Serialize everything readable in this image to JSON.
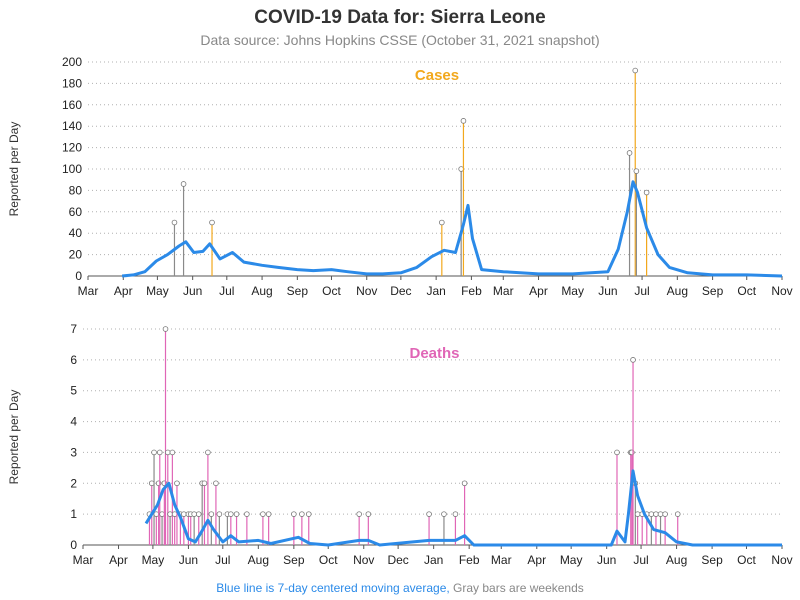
{
  "title": "COVID-19 Data for: Sierra Leone",
  "subtitle": "Data source: Johns Hopkins CSSE (October 31, 2021 snapshot)",
  "footnote": {
    "blue_text": "Blue line is 7-day centered moving average,",
    "gray_text": " Gray bars are weekends"
  },
  "colors": {
    "cases": "#f2a81d",
    "deaths": "#e066b6",
    "avg": "#2b8ae8",
    "weekend": "#8a8a8a",
    "marker_edge": "#777777"
  },
  "chart_data": [
    {
      "type": "bar",
      "name": "cases",
      "panel_label": "Cases",
      "ylabel": "Reported per Day",
      "ylim": [
        0,
        200
      ],
      "yticks": [
        0,
        20,
        40,
        60,
        80,
        100,
        120,
        140,
        160,
        180,
        200
      ],
      "grid": true,
      "x_tick_labels": [
        "Mar",
        "Apr",
        "May",
        "Jun",
        "Jul",
        "Aug",
        "Sep",
        "Oct",
        "Nov",
        "Dec",
        "Jan",
        "Feb",
        "Mar",
        "Apr",
        "May",
        "Jun",
        "Jul",
        "Aug",
        "Sep",
        "Oct",
        "Nov"
      ],
      "x_start": "2020-03-01",
      "x_end": "2021-11-01",
      "daily_peaks": [
        {
          "date": "2020-05-16",
          "value": 50
        },
        {
          "date": "2020-05-24",
          "value": 86
        },
        {
          "date": "2020-06-18",
          "value": 50
        },
        {
          "date": "2021-01-06",
          "value": 50
        },
        {
          "date": "2021-01-23",
          "value": 100
        },
        {
          "date": "2021-01-25",
          "value": 145
        },
        {
          "date": "2021-06-20",
          "value": 115
        },
        {
          "date": "2021-06-25",
          "value": 192
        },
        {
          "date": "2021-06-26",
          "value": 98
        },
        {
          "date": "2021-07-05",
          "value": 78
        }
      ],
      "moving_average": [
        {
          "date": "2020-03-31",
          "value": 0
        },
        {
          "date": "2020-04-10",
          "value": 1
        },
        {
          "date": "2020-04-20",
          "value": 4
        },
        {
          "date": "2020-04-30",
          "value": 14
        },
        {
          "date": "2020-05-10",
          "value": 20
        },
        {
          "date": "2020-05-20",
          "value": 28
        },
        {
          "date": "2020-05-26",
          "value": 32
        },
        {
          "date": "2020-06-02",
          "value": 22
        },
        {
          "date": "2020-06-10",
          "value": 23
        },
        {
          "date": "2020-06-16",
          "value": 30
        },
        {
          "date": "2020-06-25",
          "value": 16
        },
        {
          "date": "2020-07-06",
          "value": 22
        },
        {
          "date": "2020-07-16",
          "value": 13
        },
        {
          "date": "2020-08-01",
          "value": 10
        },
        {
          "date": "2020-08-15",
          "value": 8
        },
        {
          "date": "2020-09-01",
          "value": 6
        },
        {
          "date": "2020-09-15",
          "value": 5
        },
        {
          "date": "2020-10-01",
          "value": 6
        },
        {
          "date": "2020-10-15",
          "value": 4
        },
        {
          "date": "2020-11-01",
          "value": 2
        },
        {
          "date": "2020-11-15",
          "value": 2
        },
        {
          "date": "2020-12-01",
          "value": 3
        },
        {
          "date": "2020-12-15",
          "value": 8
        },
        {
          "date": "2020-12-28",
          "value": 18
        },
        {
          "date": "2021-01-08",
          "value": 24
        },
        {
          "date": "2021-01-18",
          "value": 22
        },
        {
          "date": "2021-01-25",
          "value": 48
        },
        {
          "date": "2021-01-29",
          "value": 66
        },
        {
          "date": "2021-02-02",
          "value": 35
        },
        {
          "date": "2021-02-10",
          "value": 6
        },
        {
          "date": "2021-03-01",
          "value": 4
        },
        {
          "date": "2021-04-01",
          "value": 2
        },
        {
          "date": "2021-05-01",
          "value": 2
        },
        {
          "date": "2021-06-01",
          "value": 4
        },
        {
          "date": "2021-06-10",
          "value": 25
        },
        {
          "date": "2021-06-18",
          "value": 60
        },
        {
          "date": "2021-06-23",
          "value": 88
        },
        {
          "date": "2021-06-27",
          "value": 78
        },
        {
          "date": "2021-07-05",
          "value": 45
        },
        {
          "date": "2021-07-15",
          "value": 20
        },
        {
          "date": "2021-07-25",
          "value": 8
        },
        {
          "date": "2021-08-10",
          "value": 3
        },
        {
          "date": "2021-09-01",
          "value": 1
        },
        {
          "date": "2021-10-01",
          "value": 1
        },
        {
          "date": "2021-11-01",
          "value": 0
        }
      ]
    },
    {
      "type": "bar",
      "name": "deaths",
      "panel_label": "Deaths",
      "ylabel": "Reported per Day",
      "ylim": [
        0,
        7
      ],
      "yticks": [
        0,
        1,
        2,
        3,
        4,
        5,
        6,
        7
      ],
      "grid": true,
      "x_tick_labels": [
        "Mar",
        "Apr",
        "May",
        "Jun",
        "Jul",
        "Aug",
        "Sep",
        "Oct",
        "Nov",
        "Dec",
        "Jan",
        "Feb",
        "Mar",
        "Apr",
        "May",
        "Jun",
        "Jul",
        "Aug",
        "Sep",
        "Oct",
        "Nov"
      ],
      "x_start": "2020-03-01",
      "x_end": "2021-11-01",
      "daily": [
        {
          "date": "2020-04-28",
          "value": 1
        },
        {
          "date": "2020-04-30",
          "value": 2
        },
        {
          "date": "2020-05-02",
          "value": 3
        },
        {
          "date": "2020-05-04",
          "value": 1
        },
        {
          "date": "2020-05-06",
          "value": 2
        },
        {
          "date": "2020-05-07",
          "value": 3
        },
        {
          "date": "2020-05-09",
          "value": 1
        },
        {
          "date": "2020-05-11",
          "value": 2
        },
        {
          "date": "2020-05-12",
          "value": 7
        },
        {
          "date": "2020-05-14",
          "value": 3
        },
        {
          "date": "2020-05-16",
          "value": 1
        },
        {
          "date": "2020-05-18",
          "value": 3
        },
        {
          "date": "2020-05-20",
          "value": 1
        },
        {
          "date": "2020-05-22",
          "value": 2
        },
        {
          "date": "2020-05-25",
          "value": 1
        },
        {
          "date": "2020-05-28",
          "value": 1
        },
        {
          "date": "2020-06-01",
          "value": 1
        },
        {
          "date": "2020-06-03",
          "value": 1
        },
        {
          "date": "2020-06-06",
          "value": 1
        },
        {
          "date": "2020-06-10",
          "value": 1
        },
        {
          "date": "2020-06-13",
          "value": 2
        },
        {
          "date": "2020-06-15",
          "value": 2
        },
        {
          "date": "2020-06-18",
          "value": 3
        },
        {
          "date": "2020-06-21",
          "value": 1
        },
        {
          "date": "2020-06-25",
          "value": 2
        },
        {
          "date": "2020-06-28",
          "value": 1
        },
        {
          "date": "2020-07-05",
          "value": 1
        },
        {
          "date": "2020-07-08",
          "value": 1
        },
        {
          "date": "2020-07-13",
          "value": 1
        },
        {
          "date": "2020-07-22",
          "value": 1
        },
        {
          "date": "2020-08-05",
          "value": 1
        },
        {
          "date": "2020-08-10",
          "value": 1
        },
        {
          "date": "2020-09-01",
          "value": 1
        },
        {
          "date": "2020-09-08",
          "value": 1
        },
        {
          "date": "2020-09-14",
          "value": 1
        },
        {
          "date": "2020-10-28",
          "value": 1
        },
        {
          "date": "2020-11-05",
          "value": 1
        },
        {
          "date": "2020-12-28",
          "value": 1
        },
        {
          "date": "2021-01-10",
          "value": 1
        },
        {
          "date": "2021-01-20",
          "value": 1
        },
        {
          "date": "2021-01-28",
          "value": 2
        },
        {
          "date": "2021-06-10",
          "value": 3
        },
        {
          "date": "2021-06-22",
          "value": 3
        },
        {
          "date": "2021-06-23",
          "value": 3
        },
        {
          "date": "2021-06-24",
          "value": 6
        },
        {
          "date": "2021-06-26",
          "value": 2
        },
        {
          "date": "2021-06-28",
          "value": 1
        },
        {
          "date": "2021-07-02",
          "value": 1
        },
        {
          "date": "2021-07-06",
          "value": 1
        },
        {
          "date": "2021-07-10",
          "value": 1
        },
        {
          "date": "2021-07-14",
          "value": 1
        },
        {
          "date": "2021-07-18",
          "value": 1
        },
        {
          "date": "2021-07-22",
          "value": 1
        },
        {
          "date": "2021-08-02",
          "value": 1
        }
      ],
      "moving_average": [
        {
          "date": "2020-04-25",
          "value": 0.7
        },
        {
          "date": "2020-04-30",
          "value": 1.0
        },
        {
          "date": "2020-05-05",
          "value": 1.3
        },
        {
          "date": "2020-05-10",
          "value": 1.8
        },
        {
          "date": "2020-05-15",
          "value": 2.0
        },
        {
          "date": "2020-05-20",
          "value": 1.3
        },
        {
          "date": "2020-05-25",
          "value": 0.9
        },
        {
          "date": "2020-06-01",
          "value": 0.2
        },
        {
          "date": "2020-06-07",
          "value": 0.1
        },
        {
          "date": "2020-06-12",
          "value": 0.4
        },
        {
          "date": "2020-06-18",
          "value": 0.8
        },
        {
          "date": "2020-06-23",
          "value": 0.5
        },
        {
          "date": "2020-07-01",
          "value": 0.1
        },
        {
          "date": "2020-07-08",
          "value": 0.3
        },
        {
          "date": "2020-07-15",
          "value": 0.1
        },
        {
          "date": "2020-08-01",
          "value": 0.15
        },
        {
          "date": "2020-08-12",
          "value": 0.05
        },
        {
          "date": "2020-09-05",
          "value": 0.25
        },
        {
          "date": "2020-09-15",
          "value": 0.05
        },
        {
          "date": "2020-10-01",
          "value": 0
        },
        {
          "date": "2020-10-28",
          "value": 0.15
        },
        {
          "date": "2020-11-05",
          "value": 0.15
        },
        {
          "date": "2020-11-15",
          "value": 0
        },
        {
          "date": "2020-12-28",
          "value": 0.15
        },
        {
          "date": "2021-01-10",
          "value": 0.15
        },
        {
          "date": "2021-01-20",
          "value": 0.15
        },
        {
          "date": "2021-01-28",
          "value": 0.3
        },
        {
          "date": "2021-02-05",
          "value": 0
        },
        {
          "date": "2021-06-05",
          "value": 0
        },
        {
          "date": "2021-06-10",
          "value": 0.45
        },
        {
          "date": "2021-06-17",
          "value": 0.1
        },
        {
          "date": "2021-06-20",
          "value": 1.0
        },
        {
          "date": "2021-06-24",
          "value": 2.4
        },
        {
          "date": "2021-06-28",
          "value": 1.6
        },
        {
          "date": "2021-07-04",
          "value": 1.0
        },
        {
          "date": "2021-07-12",
          "value": 0.5
        },
        {
          "date": "2021-07-22",
          "value": 0.4
        },
        {
          "date": "2021-08-01",
          "value": 0.1
        },
        {
          "date": "2021-08-15",
          "value": 0
        },
        {
          "date": "2021-11-01",
          "value": 0
        }
      ]
    }
  ]
}
